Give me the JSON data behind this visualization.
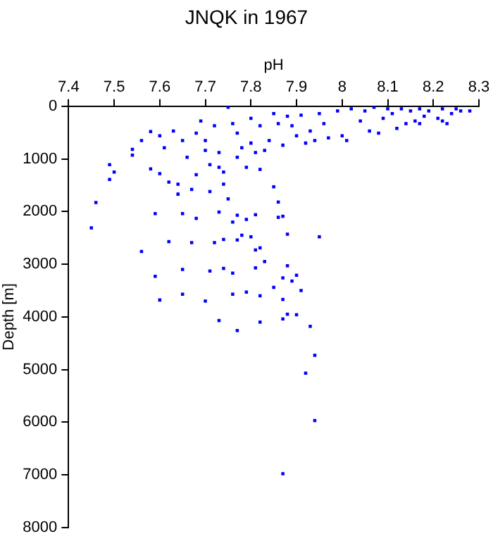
{
  "chart_data": {
    "type": "scatter",
    "title": "JNQK in 1967",
    "xlabel": "pH",
    "ylabel": "Depth [m]",
    "xlim": [
      7.4,
      8.3
    ],
    "xticks": [
      7.4,
      7.5,
      7.6,
      7.7,
      7.8,
      7.9,
      8,
      8.1,
      8.2,
      8.3
    ],
    "ylim": [
      8000,
      0
    ],
    "yticks": [
      0,
      1000,
      2000,
      3000,
      4000,
      5000,
      6000,
      7000,
      8000
    ],
    "grid": false,
    "legend": false,
    "marker": "square",
    "series": [
      {
        "color": "#0000ff",
        "x": [
          7.45,
          7.59,
          7.65,
          7.68,
          7.73,
          7.77,
          7.76,
          7.79,
          7.81,
          7.86,
          7.87,
          7.88,
          7.95,
          7.56,
          7.62,
          7.67,
          7.72,
          7.74,
          7.77,
          7.78,
          7.8,
          7.81,
          7.82,
          7.83,
          7.59,
          7.65,
          7.71,
          7.74,
          7.76,
          7.81,
          7.88,
          7.87,
          7.89,
          7.9,
          7.85,
          7.91,
          7.6,
          7.65,
          7.7,
          7.76,
          7.79,
          7.82,
          7.87,
          7.88,
          7.9,
          7.87,
          7.73,
          7.82,
          7.77,
          7.93,
          7.94,
          7.92,
          7.94,
          7.87,
          7.46,
          7.86,
          7.85,
          7.49,
          7.49,
          7.5,
          7.54,
          7.54,
          7.56,
          7.58,
          7.58,
          7.6,
          7.6,
          7.61,
          7.62,
          7.63,
          7.64,
          7.64,
          7.65,
          7.66,
          7.67,
          7.68,
          7.68,
          7.69,
          7.7,
          7.7,
          7.71,
          7.71,
          7.72,
          7.73,
          7.73,
          7.74,
          7.74,
          7.75,
          7.76,
          7.75,
          7.77,
          7.77,
          7.78,
          7.79,
          7.8,
          7.8,
          7.81,
          7.82,
          7.82,
          7.83,
          7.84,
          7.85,
          7.86,
          7.87,
          7.88,
          7.89,
          7.9,
          7.91,
          7.92,
          7.93,
          7.94,
          7.95,
          7.96,
          7.97,
          7.99,
          8,
          8.01,
          8.02,
          8.04,
          8.05,
          8.06,
          8.07,
          8.08,
          8.09,
          8.1,
          8.11,
          8.12,
          8.13,
          8.14,
          8.15,
          8.16,
          8.17,
          8.18,
          8.19,
          8.21,
          8.22,
          8.23,
          8.24,
          8.25,
          8.26,
          8.28,
          8.22,
          8.17
        ],
        "values": [
          2310,
          2040,
          2040,
          2130,
          2010,
          2070,
          2200,
          2150,
          2060,
          2110,
          2090,
          2430,
          2480,
          2760,
          2570,
          2590,
          2590,
          2530,
          2540,
          2450,
          2480,
          2730,
          2690,
          2950,
          3230,
          3100,
          3130,
          3080,
          3170,
          3070,
          3030,
          3260,
          3320,
          3210,
          3440,
          3500,
          3680,
          3570,
          3700,
          3570,
          3530,
          3600,
          3670,
          3950,
          3960,
          4040,
          4070,
          4100,
          4260,
          4180,
          4730,
          5070,
          5970,
          6980,
          1830,
          1820,
          1530,
          1110,
          1390,
          1250,
          930,
          820,
          650,
          480,
          1190,
          1280,
          560,
          790,
          1440,
          470,
          1670,
          1480,
          650,
          970,
          1580,
          510,
          1300,
          280,
          840,
          650,
          1620,
          1110,
          370,
          1160,
          880,
          1480,
          1250,
          20,
          330,
          1760,
          970,
          510,
          790,
          1160,
          700,
          230,
          880,
          1200,
          370,
          840,
          650,
          140,
          330,
          740,
          190,
          370,
          560,
          170,
          700,
          470,
          650,
          140,
          330,
          600,
          90,
          560,
          650,
          50,
          280,
          90,
          470,
          20,
          510,
          230,
          50,
          140,
          420,
          50,
          330,
          90,
          280,
          50,
          190,
          90,
          230,
          50,
          330,
          140,
          50,
          90,
          90,
          280,
          330
        ]
      }
    ]
  }
}
